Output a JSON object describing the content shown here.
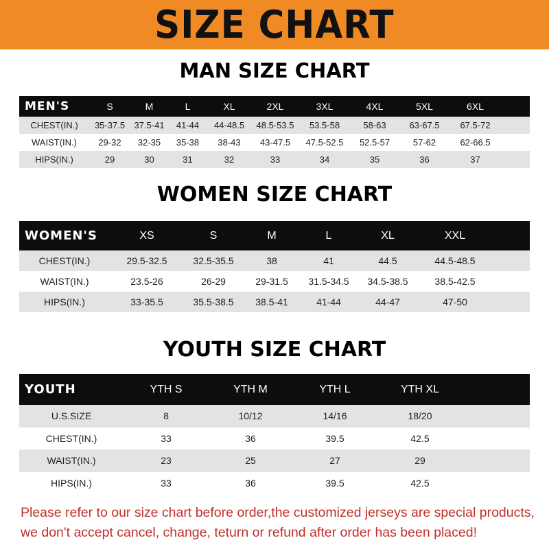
{
  "banner_title": "SIZE CHART",
  "men": {
    "title": "MAN SIZE CHART",
    "header_label": "MEN'S",
    "sizes": [
      "S",
      "M",
      "L",
      "XL",
      "2XL",
      "3XL",
      "4XL",
      "5XL",
      "6XL"
    ],
    "rows": [
      {
        "label": "CHEST(IN.)",
        "values": [
          "35-37.5",
          "37.5-41",
          "41-44",
          "44-48.5",
          "48.5-53.5",
          "53.5-58",
          "58-63",
          "63-67.5",
          "67.5-72"
        ]
      },
      {
        "label": "WAIST(IN.)",
        "values": [
          "29-32",
          "32-35",
          "35-38",
          "38-43",
          "43-47.5",
          "47.5-52.5",
          "52.5-57",
          "57-62",
          "62-66.5"
        ]
      },
      {
        "label": "HIPS(IN.)",
        "values": [
          "29",
          "30",
          "31",
          "32",
          "33",
          "34",
          "35",
          "36",
          "37"
        ]
      }
    ]
  },
  "women": {
    "title": "WOMEN SIZE CHART",
    "header_label": "WOMEN'S",
    "sizes": [
      "XS",
      "S",
      "M",
      "L",
      "XL",
      "XXL"
    ],
    "rows": [
      {
        "label": "CHEST(IN.)",
        "values": [
          "29.5-32.5",
          "32.5-35.5",
          "38",
          "41",
          "44.5",
          "44.5-48.5"
        ]
      },
      {
        "label": "WAIST(IN.)",
        "values": [
          "23.5-26",
          "26-29",
          "29-31.5",
          "31.5-34.5",
          "34.5-38.5",
          "38.5-42.5"
        ]
      },
      {
        "label": "HIPS(IN.)",
        "values": [
          "33-35.5",
          "35.5-38.5",
          "38.5-41",
          "41-44",
          "44-47",
          "47-50"
        ]
      }
    ]
  },
  "youth": {
    "title": "YOUTH SIZE CHART",
    "header_label": "YOUTH",
    "sizes": [
      "YTH S",
      "YTH M",
      "YTH L",
      "YTH XL"
    ],
    "rows": [
      {
        "label": "U.S.SIZE",
        "values": [
          "8",
          "10/12",
          "14/16",
          "18/20"
        ]
      },
      {
        "label": "CHEST(IN.)",
        "values": [
          "33",
          "36",
          "39.5",
          "42.5"
        ]
      },
      {
        "label": "WAIST(IN.)",
        "values": [
          "23",
          "25",
          "27",
          "29"
        ]
      },
      {
        "label": "HIPS(IN.)",
        "values": [
          "33",
          "36",
          "39.5",
          "42.5"
        ]
      }
    ]
  },
  "notice": [
    "Please refer to our size chart before order,the customized jerseys are special products,",
    "we don't accept cancel, change, teturn or refund after order has been placed!"
  ],
  "colors": {
    "banner": "#f08a24",
    "header_row": "#0d0d0d",
    "stripe": "#e3e3e3",
    "notice": "#c0302a"
  }
}
